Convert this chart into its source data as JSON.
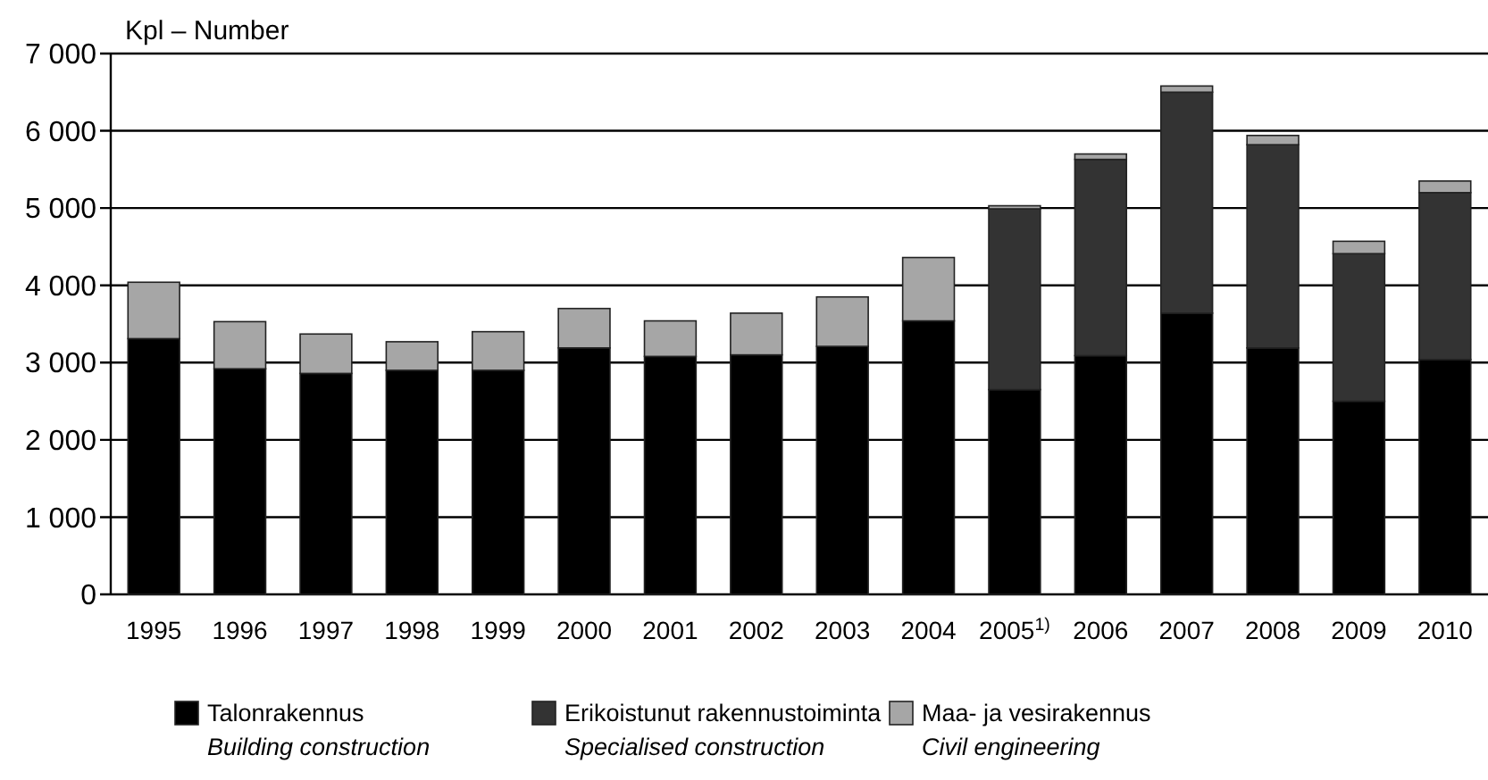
{
  "chart_data": {
    "type": "bar",
    "stacked": true,
    "ylabel": "Kpl – Number",
    "categories": [
      "1995",
      "1996",
      "1997",
      "1998",
      "1999",
      "2000",
      "2001",
      "2002",
      "2003",
      "2004",
      "2005$^{1)}$",
      "2006",
      "2007",
      "2008",
      "2009",
      "2010"
    ],
    "series": [
      {
        "name": "Talonrakennus\nBuilding construction",
        "color": "#000000",
        "values": [
          3310,
          2920,
          2860,
          2900,
          2900,
          3190,
          3080,
          3100,
          3210,
          3540,
          2650,
          3090,
          3640,
          3190,
          2500,
          3040
        ]
      },
      {
        "name": "Erikoistunut rakennustoiminta\nSpecialised construction",
        "color": "#333333",
        "values": [
          null,
          null,
          null,
          null,
          null,
          null,
          null,
          null,
          null,
          null,
          2340,
          2540,
          2860,
          2630,
          1910,
          2160
        ]
      },
      {
        "name": "Maa- ja vesirakennus\nCivil engineering",
        "color": "#a6a6a6",
        "values": [
          730,
          610,
          510,
          370,
          500,
          510,
          460,
          540,
          640,
          820,
          40,
          70,
          80,
          120,
          160,
          150
        ]
      }
    ],
    "ylim": [
      0,
      7000
    ],
    "yticks": [
      {
        "value": 0,
        "label": "0"
      },
      {
        "value": 1000,
        "label": "1 000"
      },
      {
        "value": 2000,
        "label": "2 000"
      },
      {
        "value": 3000,
        "label": "3 000"
      },
      {
        "value": 4000,
        "label": "4 000"
      },
      {
        "value": 5000,
        "label": "5 000"
      },
      {
        "value": 6000,
        "label": "6 000"
      },
      {
        "value": 7000,
        "label": "7 000"
      }
    ],
    "grid": "y",
    "legend": "bottom"
  }
}
